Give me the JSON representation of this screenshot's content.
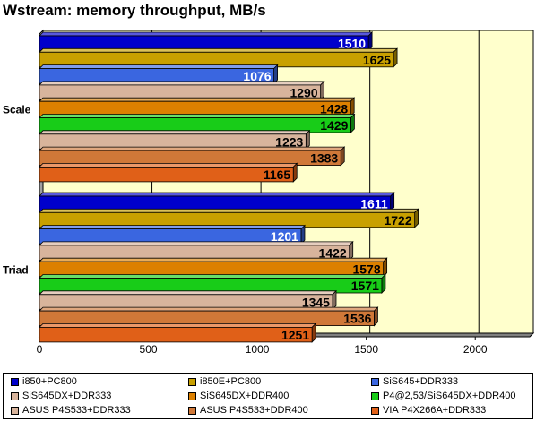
{
  "chart_data": {
    "type": "bar",
    "orientation": "horizontal",
    "title": "Wstream: memory throughput, MB/s",
    "categories": [
      "Scale",
      "Triad"
    ],
    "xlim": [
      0,
      2250
    ],
    "xticks": [
      0,
      500,
      1000,
      1500,
      2000
    ],
    "xtick_labels": [
      "0",
      "500",
      "1000",
      "1500",
      "2000"
    ],
    "grid": true,
    "legend_position": "bottom",
    "series": [
      {
        "name": "i850+PC800",
        "color": "#0000cc",
        "label_color": "#ffffff",
        "values": [
          1510,
          1611
        ]
      },
      {
        "name": "i850E+PC800",
        "color": "#c8a000",
        "label_color": "#000000",
        "values": [
          1625,
          1722
        ]
      },
      {
        "name": "SiS645+DDR333",
        "color": "#3a66e0",
        "label_color": "#ffffff",
        "values": [
          1076,
          1201
        ]
      },
      {
        "name": "SiS645DX+DDR333",
        "color": "#d8b49c",
        "label_color": "#000000",
        "values": [
          1290,
          1422
        ]
      },
      {
        "name": "SiS645DX+DDR400",
        "color": "#dc8000",
        "label_color": "#000000",
        "values": [
          1428,
          1578
        ]
      },
      {
        "name": "P4@2,53/SiS645DX+DDR400",
        "color": "#18cc18",
        "label_color": "#000000",
        "values": [
          1429,
          1571
        ]
      },
      {
        "name": "ASUS P4S533+DDR333",
        "color": "#d8b49c",
        "label_color": "#000000",
        "values": [
          1223,
          1345
        ]
      },
      {
        "name": "ASUS P4S533+DDR400",
        "color": "#d07838",
        "label_color": "#000000",
        "values": [
          1383,
          1536
        ]
      },
      {
        "name": "VIA P4X266A+DDR333",
        "color": "#e06018",
        "label_color": "#000000",
        "values": [
          1165,
          1251
        ]
      }
    ]
  }
}
